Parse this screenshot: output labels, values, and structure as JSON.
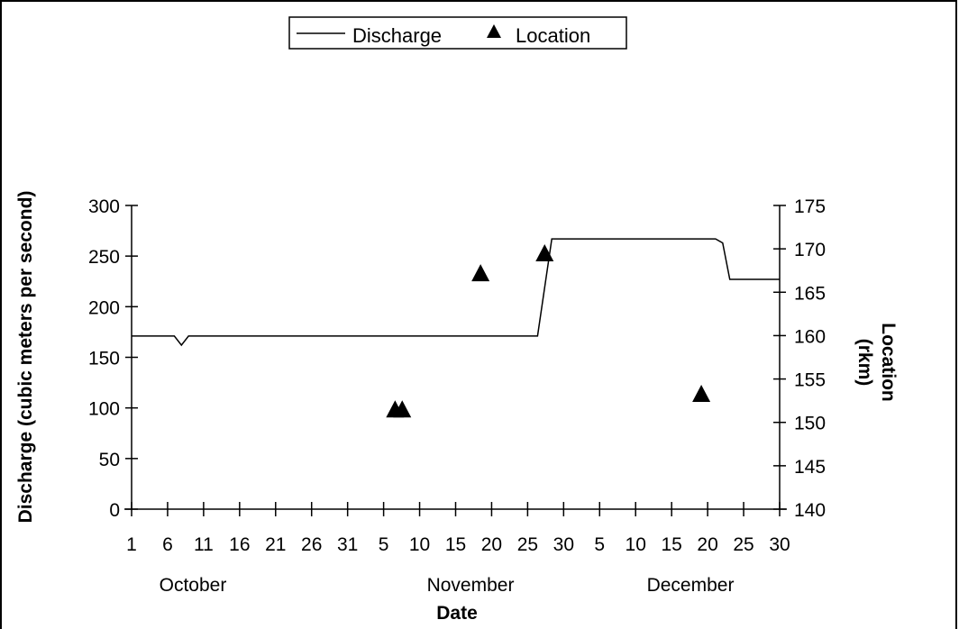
{
  "chart_data": {
    "type": "line",
    "xlabel": "Date",
    "ylabel_left": "Discharge (cubic meters per second)",
    "ylabel_right": "Location",
    "ylabel_right_unit": "(rkm)",
    "x_tick_labels": [
      "1",
      "6",
      "11",
      "16",
      "21",
      "26",
      "31",
      "5",
      "10",
      "15",
      "20",
      "25",
      "30",
      "5",
      "10",
      "15",
      "20",
      "25",
      "30"
    ],
    "month_labels": [
      "October",
      "November",
      "December"
    ],
    "y_left_ticks": [
      "0",
      "50",
      "100",
      "150",
      "200",
      "250",
      "300"
    ],
    "y_right_ticks": [
      "140",
      "145",
      "150",
      "155",
      "160",
      "165",
      "170",
      "175"
    ],
    "ylim_left": [
      0,
      300
    ],
    "ylim_right": [
      140,
      175
    ],
    "xlim": [
      "1998-10-01",
      "1998-12-31"
    ],
    "legend": {
      "position": "top-center",
      "items": [
        {
          "label": "Discharge",
          "marker": "line"
        },
        {
          "label": "Location",
          "marker": "triangle"
        }
      ]
    },
    "series": [
      {
        "name": "Discharge",
        "axis": "left",
        "style": "line",
        "color": "#000000",
        "points": [
          {
            "x": "1998-10-01",
            "y": 171
          },
          {
            "x": "1998-10-07",
            "y": 171
          },
          {
            "x": "1998-10-08",
            "y": 162
          },
          {
            "x": "1998-10-09",
            "y": 171
          },
          {
            "x": "1998-11-27",
            "y": 171
          },
          {
            "x": "1998-11-29",
            "y": 267
          },
          {
            "x": "1998-12-22",
            "y": 267
          },
          {
            "x": "1998-12-23",
            "y": 263
          },
          {
            "x": "1998-12-24",
            "y": 227
          },
          {
            "x": "1998-12-31",
            "y": 227
          }
        ]
      },
      {
        "name": "Location",
        "axis": "right",
        "style": "marker-triangle",
        "color": "#000000",
        "points": [
          {
            "x": "1998-11-07",
            "y": 151.5
          },
          {
            "x": "1998-11-08",
            "y": 151.5
          },
          {
            "x": "1998-11-19",
            "y": 167.2
          },
          {
            "x": "1998-11-28",
            "y": 169.5
          },
          {
            "x": "1998-12-20",
            "y": 153.3
          }
        ]
      }
    ],
    "grid": false
  }
}
